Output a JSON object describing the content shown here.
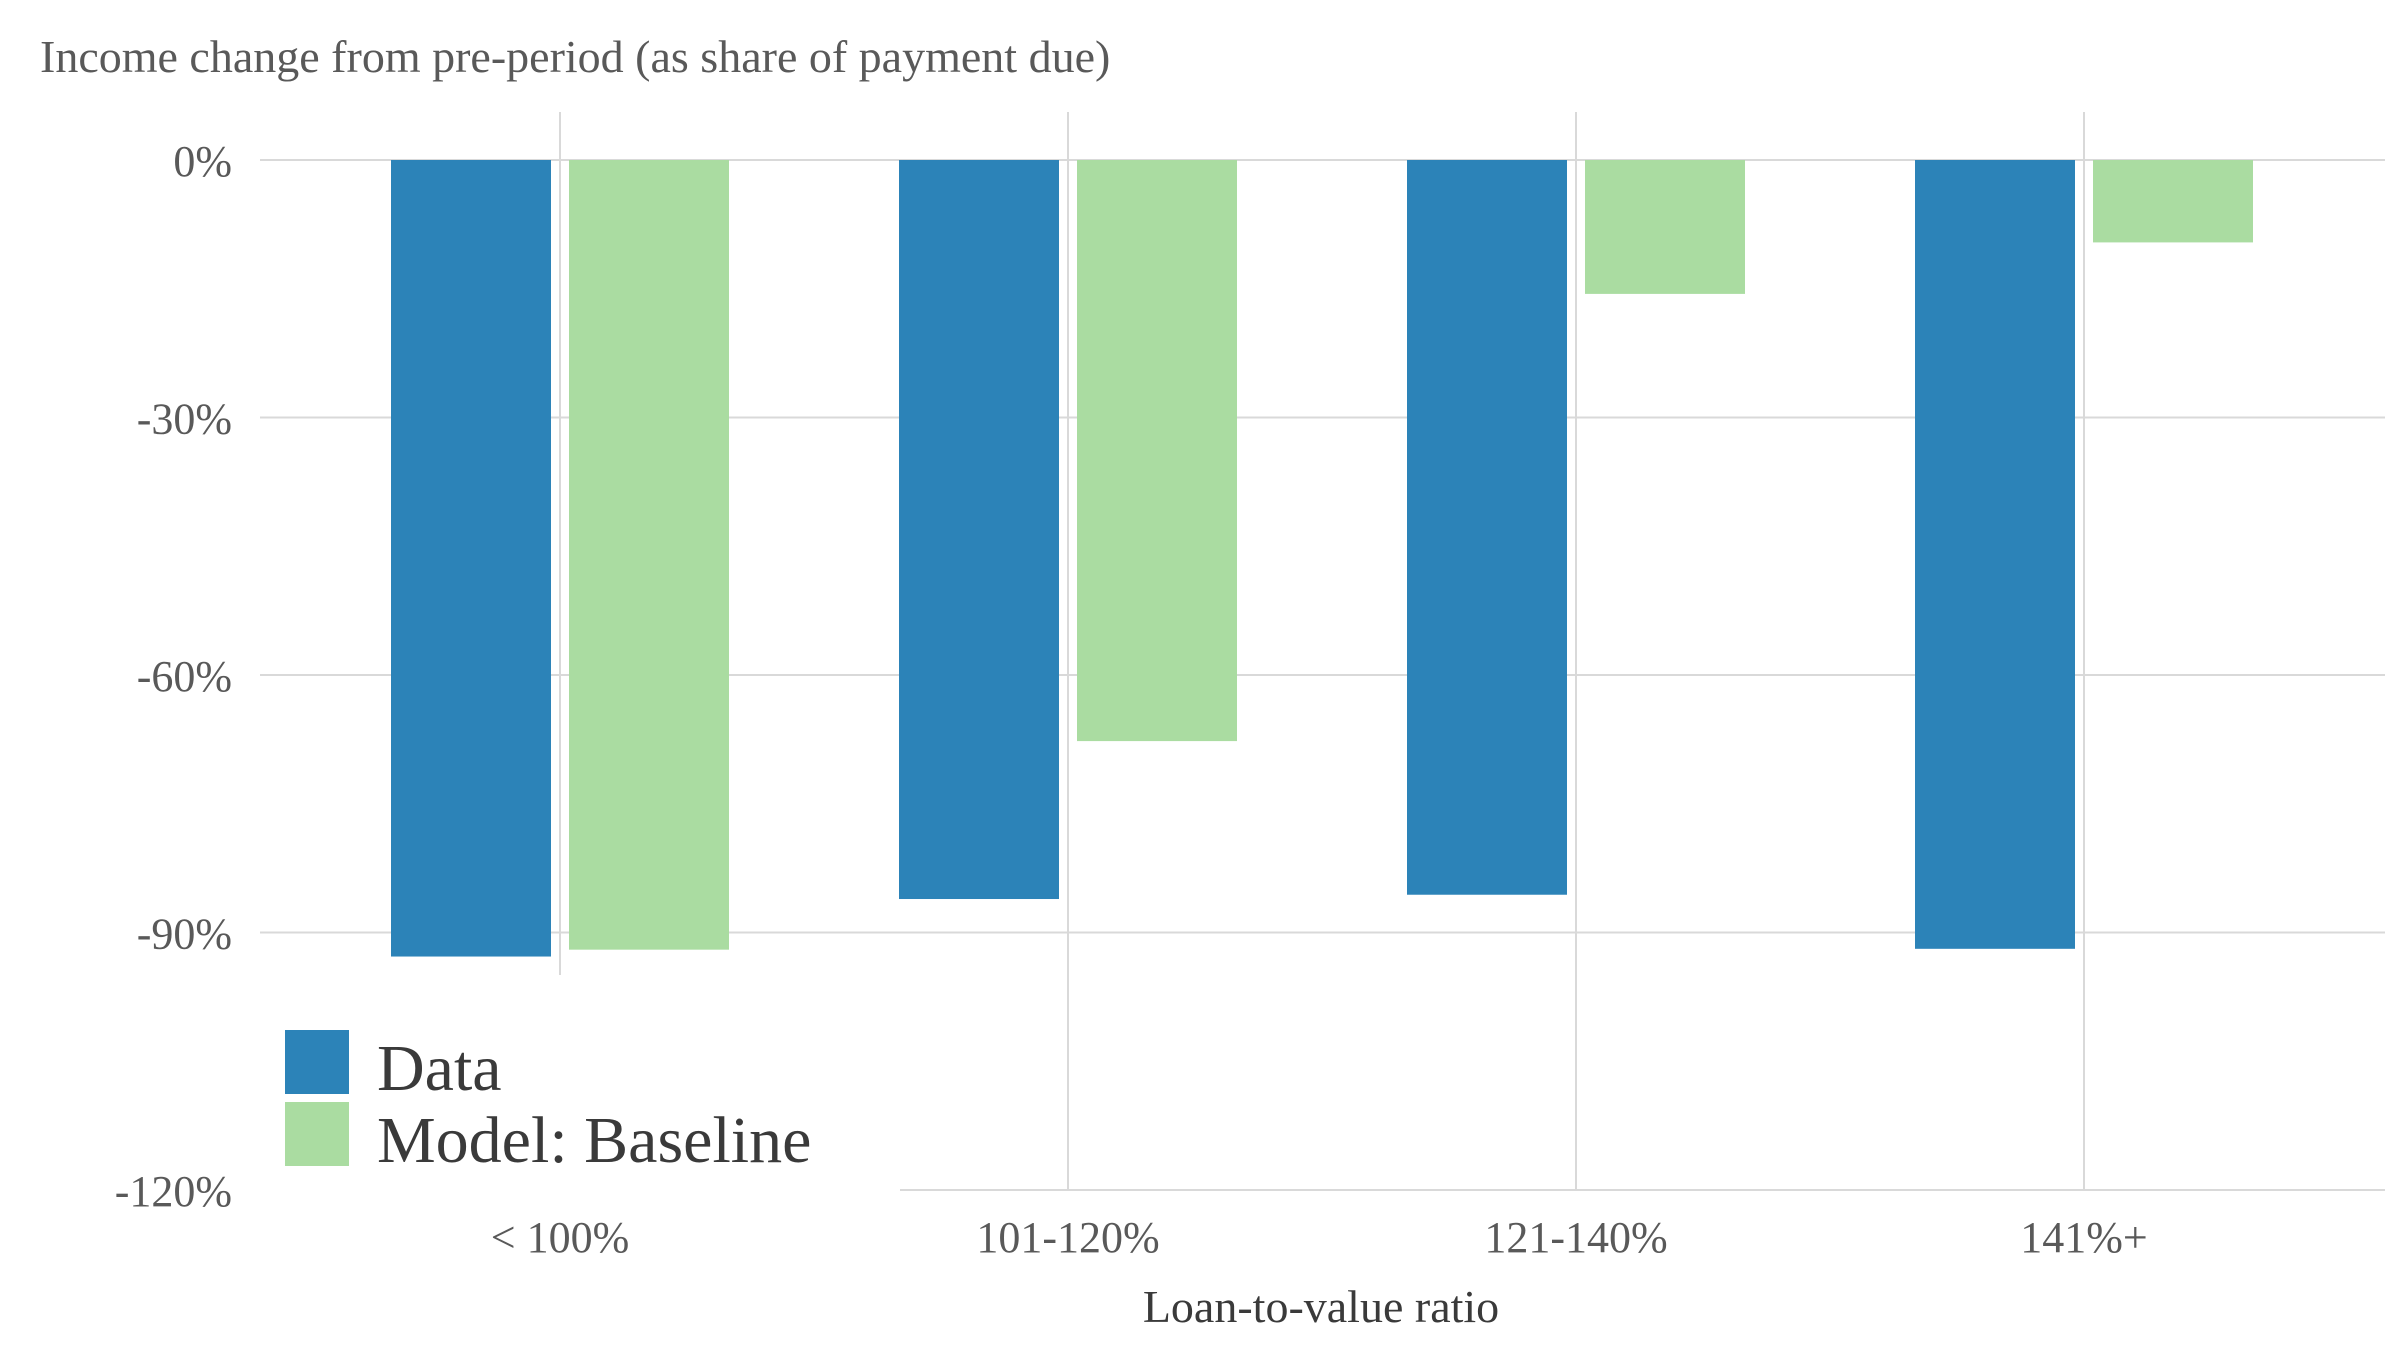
{
  "chart_data": {
    "type": "bar",
    "title": "Income change from pre-period (as share of payment due)",
    "xlabel": "Loan-to-value ratio",
    "ylabel": "",
    "categories": [
      "< 100%",
      "101-120%",
      "121-140%",
      "141%+"
    ],
    "series": [
      {
        "name": "Data",
        "values": [
          -92.8,
          -86.1,
          -85.6,
          -91.9
        ]
      },
      {
        "name": "Model: Baseline",
        "values": [
          -92.0,
          -67.7,
          -15.6,
          -9.6
        ]
      }
    ],
    "ylim": [
      -120,
      0
    ],
    "yticks": [
      0,
      -30,
      -60,
      -90,
      -120
    ],
    "ytick_labels": [
      "0%",
      "-30%",
      "-60%",
      "-90%",
      "-120%"
    ],
    "grid": true,
    "legend_position": "bottom-left",
    "colors": {
      "series": [
        "#2c83b8",
        "#aadca1"
      ],
      "grid": "#d9d9d9",
      "text": "#595959",
      "legend_text": "#3a3a3a"
    }
  }
}
